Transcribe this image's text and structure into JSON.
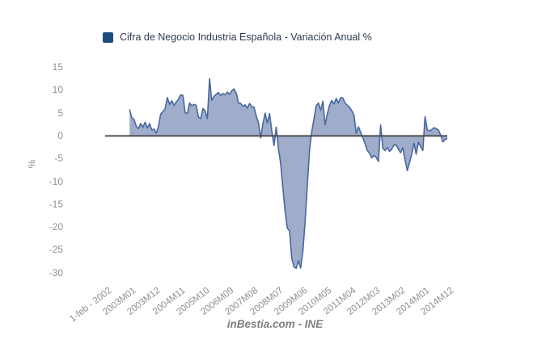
{
  "legend": {
    "label": "Cifra de Negocio Industria Española - Variación Anual %",
    "marker_color": "#1d4b7e"
  },
  "y_axis": {
    "title": "%",
    "ticks": [
      15,
      10,
      5,
      0,
      -5,
      -10,
      -15,
      -20,
      -25,
      -30
    ]
  },
  "x_axis": {
    "labels": [
      "1-feb - 2002",
      "2003M01",
      "2003M12",
      "2004M11",
      "2005M10",
      "2006M09",
      "2007M08",
      "2008M07",
      "2009M06",
      "2010M05",
      "2011M04",
      "2012M03",
      "2013M02",
      "2014M01",
      "2014M12"
    ]
  },
  "footer": {
    "credit": "inBestia.com - INE"
  },
  "chart_data": {
    "type": "area",
    "title": "Cifra de Negocio Industria Española - Variación Anual %",
    "xlabel": "",
    "ylabel": "%",
    "ylim": [
      -30,
      15
    ],
    "grid": false,
    "legend_position": "top",
    "x_tick_labels": [
      "1-feb - 2002",
      "2003M01",
      "2003M12",
      "2004M11",
      "2005M10",
      "2006M09",
      "2007M08",
      "2008M07",
      "2009M06",
      "2010M05",
      "2011M04",
      "2012M03",
      "2013M02",
      "2014M01",
      "2014M12"
    ],
    "x_start_month": "2003M01",
    "x_end_month": "2014M12",
    "frequency": "monthly",
    "series": [
      {
        "name": "Cifra de Negocio Industria Española - Variación Anual %",
        "values": [
          5.8,
          4.0,
          3.6,
          2.1,
          1.6,
          2.7,
          1.9,
          3.0,
          1.7,
          2.7,
          1.3,
          1.5,
          0.6,
          2.1,
          4.8,
          5.3,
          6.0,
          8.4,
          6.9,
          7.7,
          6.7,
          7.4,
          8.0,
          9.0,
          8.9,
          5.1,
          4.9,
          7.2,
          6.6,
          6.9,
          6.7,
          4.1,
          3.8,
          6.0,
          5.5,
          3.8,
          12.5,
          7.8,
          8.7,
          9.1,
          9.5,
          8.8,
          9.3,
          9.0,
          9.6,
          9.1,
          9.9,
          10.3,
          9.4,
          7.2,
          7.1,
          6.5,
          6.8,
          6.1,
          7.1,
          6.4,
          6.3,
          4.4,
          2.9,
          -0.4,
          2.6,
          5.0,
          2.8,
          4.9,
          1.1,
          -2.1,
          1.9,
          -2.7,
          -6.0,
          -11.3,
          -16.5,
          -20.2,
          -20.8,
          -26.8,
          -28.7,
          -29.0,
          -27.3,
          -28.9,
          -25.2,
          -18.8,
          -10.6,
          -3.1,
          0.9,
          3.7,
          6.6,
          7.2,
          5.6,
          7.6,
          2.5,
          4.8,
          6.7,
          7.8,
          7.0,
          8.2,
          7.2,
          8.4,
          8.3,
          7.2,
          6.7,
          6.3,
          5.5,
          4.6,
          0.6,
          2.0,
          0.8,
          -0.4,
          -1.7,
          -3.2,
          -3.8,
          -4.8,
          -4.3,
          -4.7,
          -5.6,
          2.4,
          -2.7,
          -3.2,
          -2.5,
          -3.4,
          -2.9,
          -2.0,
          -2.0,
          -2.9,
          -3.7,
          -2.6,
          -5.3,
          -7.6,
          -5.8,
          -4.0,
          -1.6,
          -4.0,
          -1.4,
          -2.3,
          -3.2,
          4.2,
          1.3,
          1.1,
          1.4,
          1.8,
          1.6,
          1.3,
          0.2,
          -1.3,
          -0.8,
          -0.5
        ]
      }
    ],
    "colors": {
      "area_fill": "#9fadcb",
      "area_line": "#47679f",
      "zero_axis_line": "#4d4d4d",
      "tick_text": "#909090",
      "legend_text": "#2b3c50",
      "background": "#ffffff"
    }
  }
}
